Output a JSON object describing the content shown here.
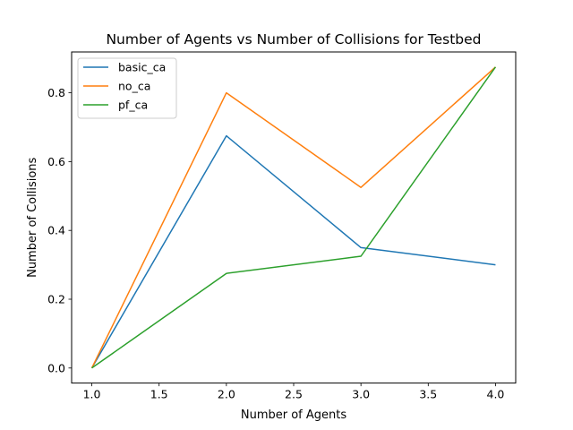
{
  "chart_data": {
    "type": "line",
    "title": "Number of Agents vs Number of Collisions for Testbed",
    "xlabel": "Number of Agents",
    "ylabel": "Number of Collisions",
    "x": [
      1.0,
      2.0,
      3.0,
      4.0
    ],
    "xlim": [
      0.85,
      4.15
    ],
    "ylim": [
      -0.04375,
      0.91875
    ],
    "xticks": [
      1.0,
      1.5,
      2.0,
      2.5,
      3.0,
      3.5,
      4.0
    ],
    "xtick_labels": [
      "1.0",
      "1.5",
      "2.0",
      "2.5",
      "3.0",
      "3.5",
      "4.0"
    ],
    "yticks": [
      0.0,
      0.2,
      0.4,
      0.6,
      0.8
    ],
    "ytick_labels": [
      "0.0",
      "0.2",
      "0.4",
      "0.6",
      "0.8"
    ],
    "grid": false,
    "legend_position": "top-left",
    "series": [
      {
        "name": "basic_ca",
        "color": "#1f77b4",
        "values": [
          0.0,
          0.675,
          0.35,
          0.3
        ]
      },
      {
        "name": "no_ca",
        "color": "#ff7f0e",
        "values": [
          0.0,
          0.8,
          0.525,
          0.875
        ]
      },
      {
        "name": "pf_ca",
        "color": "#2ca02c",
        "values": [
          0.0,
          0.275,
          0.325,
          0.875
        ]
      }
    ]
  }
}
